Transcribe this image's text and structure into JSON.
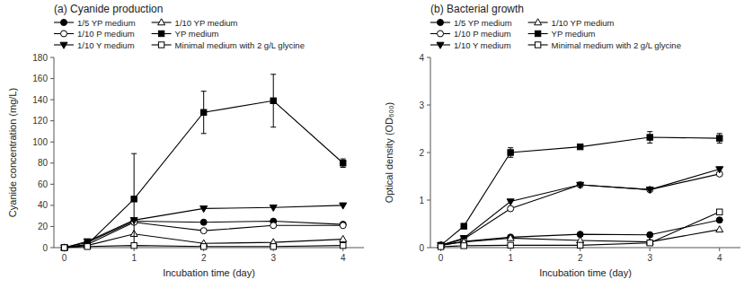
{
  "chart_data": [
    {
      "type": "line",
      "title": "(a) Cyanide production",
      "x_label": "Incubation time (day)",
      "y_label": "Cyanide concentration (mg/L)",
      "x": [
        0,
        0.33,
        1,
        2,
        3,
        4
      ],
      "xlim": [
        -0.15,
        4.3
      ],
      "xticks": [
        0,
        1,
        2,
        3,
        4
      ],
      "ylim": [
        0,
        180
      ],
      "yticks": [
        0,
        20,
        40,
        60,
        80,
        100,
        120,
        140,
        160,
        180
      ],
      "grid": false,
      "legend": "top",
      "series": [
        {
          "name": "1/5 YP medium",
          "color": "black",
          "marker": "circle",
          "line_style": "solid",
          "values": [
            0,
            5,
            25,
            24,
            25,
            22
          ]
        },
        {
          "name": "1/10 P medium",
          "color": "black",
          "marker": "open-circle",
          "line_style": "solid",
          "values": [
            0,
            3,
            24,
            16,
            21,
            21
          ]
        },
        {
          "name": "1/10 Y medium",
          "color": "black",
          "marker": "triangle-down",
          "line_style": "solid",
          "values": [
            0,
            6,
            26,
            37,
            38,
            40
          ]
        },
        {
          "name": "1/10 YP medium",
          "color": "black",
          "marker": "open-triangle-up",
          "line_style": "solid",
          "values": [
            0,
            2,
            13,
            4,
            5,
            8
          ]
        },
        {
          "name": "YP medium",
          "color": "black",
          "marker": "square",
          "line_style": "solid",
          "values": [
            0,
            3,
            46,
            128,
            139,
            80
          ],
          "errors": [
            0,
            0,
            43,
            20,
            25,
            4
          ]
        },
        {
          "name": "Minimal medium with 2 g/L glycine",
          "color": "black",
          "marker": "open-square",
          "line_style": "solid",
          "values": [
            0,
            1,
            2,
            1,
            1,
            2
          ]
        }
      ]
    },
    {
      "type": "line",
      "title": "(b) Bacterial growth",
      "x_label": "Incubation time (day)",
      "y_label": "Optical density (OD₆₀₀)",
      "x": [
        0,
        0.33,
        1,
        2,
        3,
        4
      ],
      "xlim": [
        -0.15,
        4.3
      ],
      "xticks": [
        0,
        1,
        2,
        3,
        4
      ],
      "ylim": [
        0,
        4
      ],
      "yticks": [
        0,
        1,
        2,
        3,
        4
      ],
      "grid": false,
      "legend": "top",
      "series": [
        {
          "name": "1/5 YP medium",
          "color": "black",
          "marker": "circle",
          "line_style": "solid",
          "values": [
            0.05,
            0.13,
            0.22,
            0.28,
            0.27,
            0.58
          ]
        },
        {
          "name": "1/10 P medium",
          "color": "black",
          "marker": "open-circle",
          "line_style": "solid",
          "values": [
            0.05,
            0.18,
            0.82,
            1.32,
            1.22,
            1.55
          ],
          "errors": [
            0,
            0.07,
            0,
            0,
            0,
            0
          ]
        },
        {
          "name": "1/10 Y medium",
          "color": "black",
          "marker": "triangle-down",
          "line_style": "solid",
          "values": [
            0.05,
            0.2,
            0.97,
            1.32,
            1.22,
            1.65
          ]
        },
        {
          "name": "1/10 YP medium",
          "color": "black",
          "marker": "open-triangle-up",
          "line_style": "solid",
          "values": [
            0.05,
            0.12,
            0.2,
            0.15,
            0.12,
            0.38
          ]
        },
        {
          "name": "YP medium",
          "color": "black",
          "marker": "square",
          "line_style": "solid",
          "values": [
            0.05,
            0.45,
            2,
            2.12,
            2.32,
            2.3
          ],
          "errors": [
            0,
            0,
            0.1,
            0,
            0.12,
            0.1
          ]
        },
        {
          "name": "Minimal medium with 2 g/L glycine",
          "color": "black",
          "marker": "open-square",
          "line_style": "solid",
          "values": [
            0.02,
            0.04,
            0.05,
            0.05,
            0.1,
            0.75
          ]
        }
      ]
    }
  ]
}
